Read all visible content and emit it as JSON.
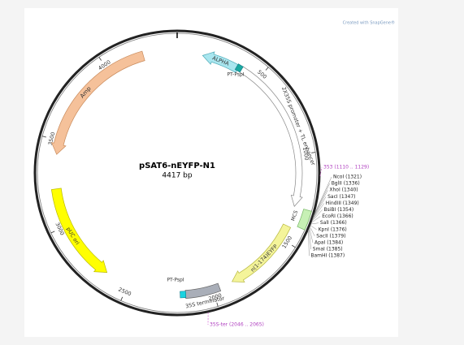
{
  "attribution": "Created with SnapGene®",
  "plasmid": {
    "name": "pSAT6-nEYFP-N1",
    "size": {
      "value": 4417,
      "label": "4417 bp"
    }
  },
  "ticks": [
    500,
    1000,
    1500,
    2000,
    2500,
    3000,
    3500,
    4000
  ],
  "features": [
    {
      "label": "ALPHA"
    },
    {
      "label": "2X35S promoter + TL enhancer"
    },
    {
      "label": "MCS"
    },
    {
      "label": "n(1-174)EYFP"
    },
    {
      "label": "35S terminator"
    },
    {
      "label": "pUC ori"
    },
    {
      "label": "Amp"
    }
  ],
  "primers": [
    {
      "label": "PT-PspI"
    },
    {
      "label": "PT-PspI"
    }
  ],
  "primer_sites": [
    "353 (1110 .. 1129)",
    "35S-ter (2046 .. 2065)"
  ],
  "sites": [
    "NcoI (1321)",
    "BglII (1336)",
    "XhoI (1340)",
    "SacI (1347)",
    "HindIII (1349)",
    "BsiBI (1354)",
    "EcoRI (1366)",
    "SalI (1366)",
    "KpnI (1376)",
    "SacII (1379)",
    "ApaI (1384)",
    "SmaI (1385)",
    "BamHI (1387)"
  ]
}
